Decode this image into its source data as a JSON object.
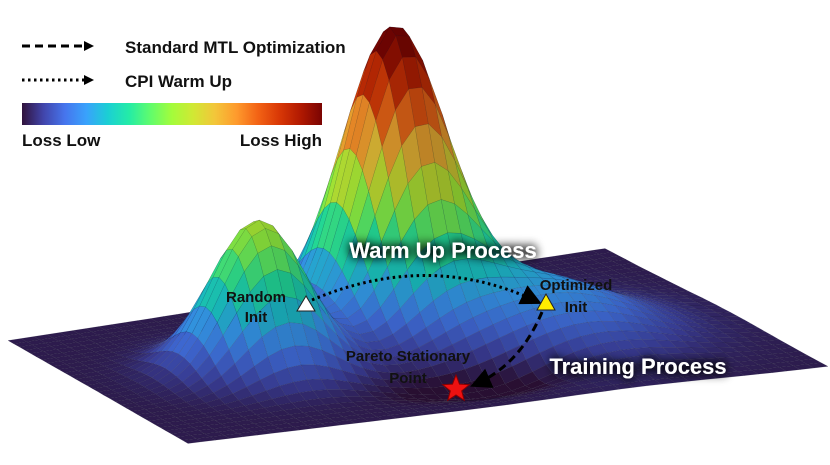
{
  "legend": {
    "dashed_label": "Standard MTL Optimization",
    "dotted_label": "CPI Warm Up",
    "colorbar_low": "Loss Low",
    "colorbar_high": "Loss High"
  },
  "annotations": {
    "warm_up_process": "Warm Up Process",
    "training_process": "Training Process",
    "random_init_line1": "Random",
    "random_init_line2": "Init",
    "optimized_init_line1": "Optimized",
    "optimized_init_line2": "Init",
    "pareto_line1": "Pareto Stationary",
    "pareto_line2": "Point"
  },
  "colors": {
    "colormap": [
      "#30123b",
      "#4145ab",
      "#4675ed",
      "#39a2fc",
      "#1bcfd4",
      "#24eca6",
      "#61fc6c",
      "#a4fc3b",
      "#d1e834",
      "#f3c63a",
      "#fe9b2d",
      "#f36315",
      "#d93806",
      "#b11901",
      "#7a0402"
    ],
    "random_init_marker": "#ffffff",
    "optimized_init_marker": "#ffee00",
    "pareto_marker": "#ee1111"
  }
}
